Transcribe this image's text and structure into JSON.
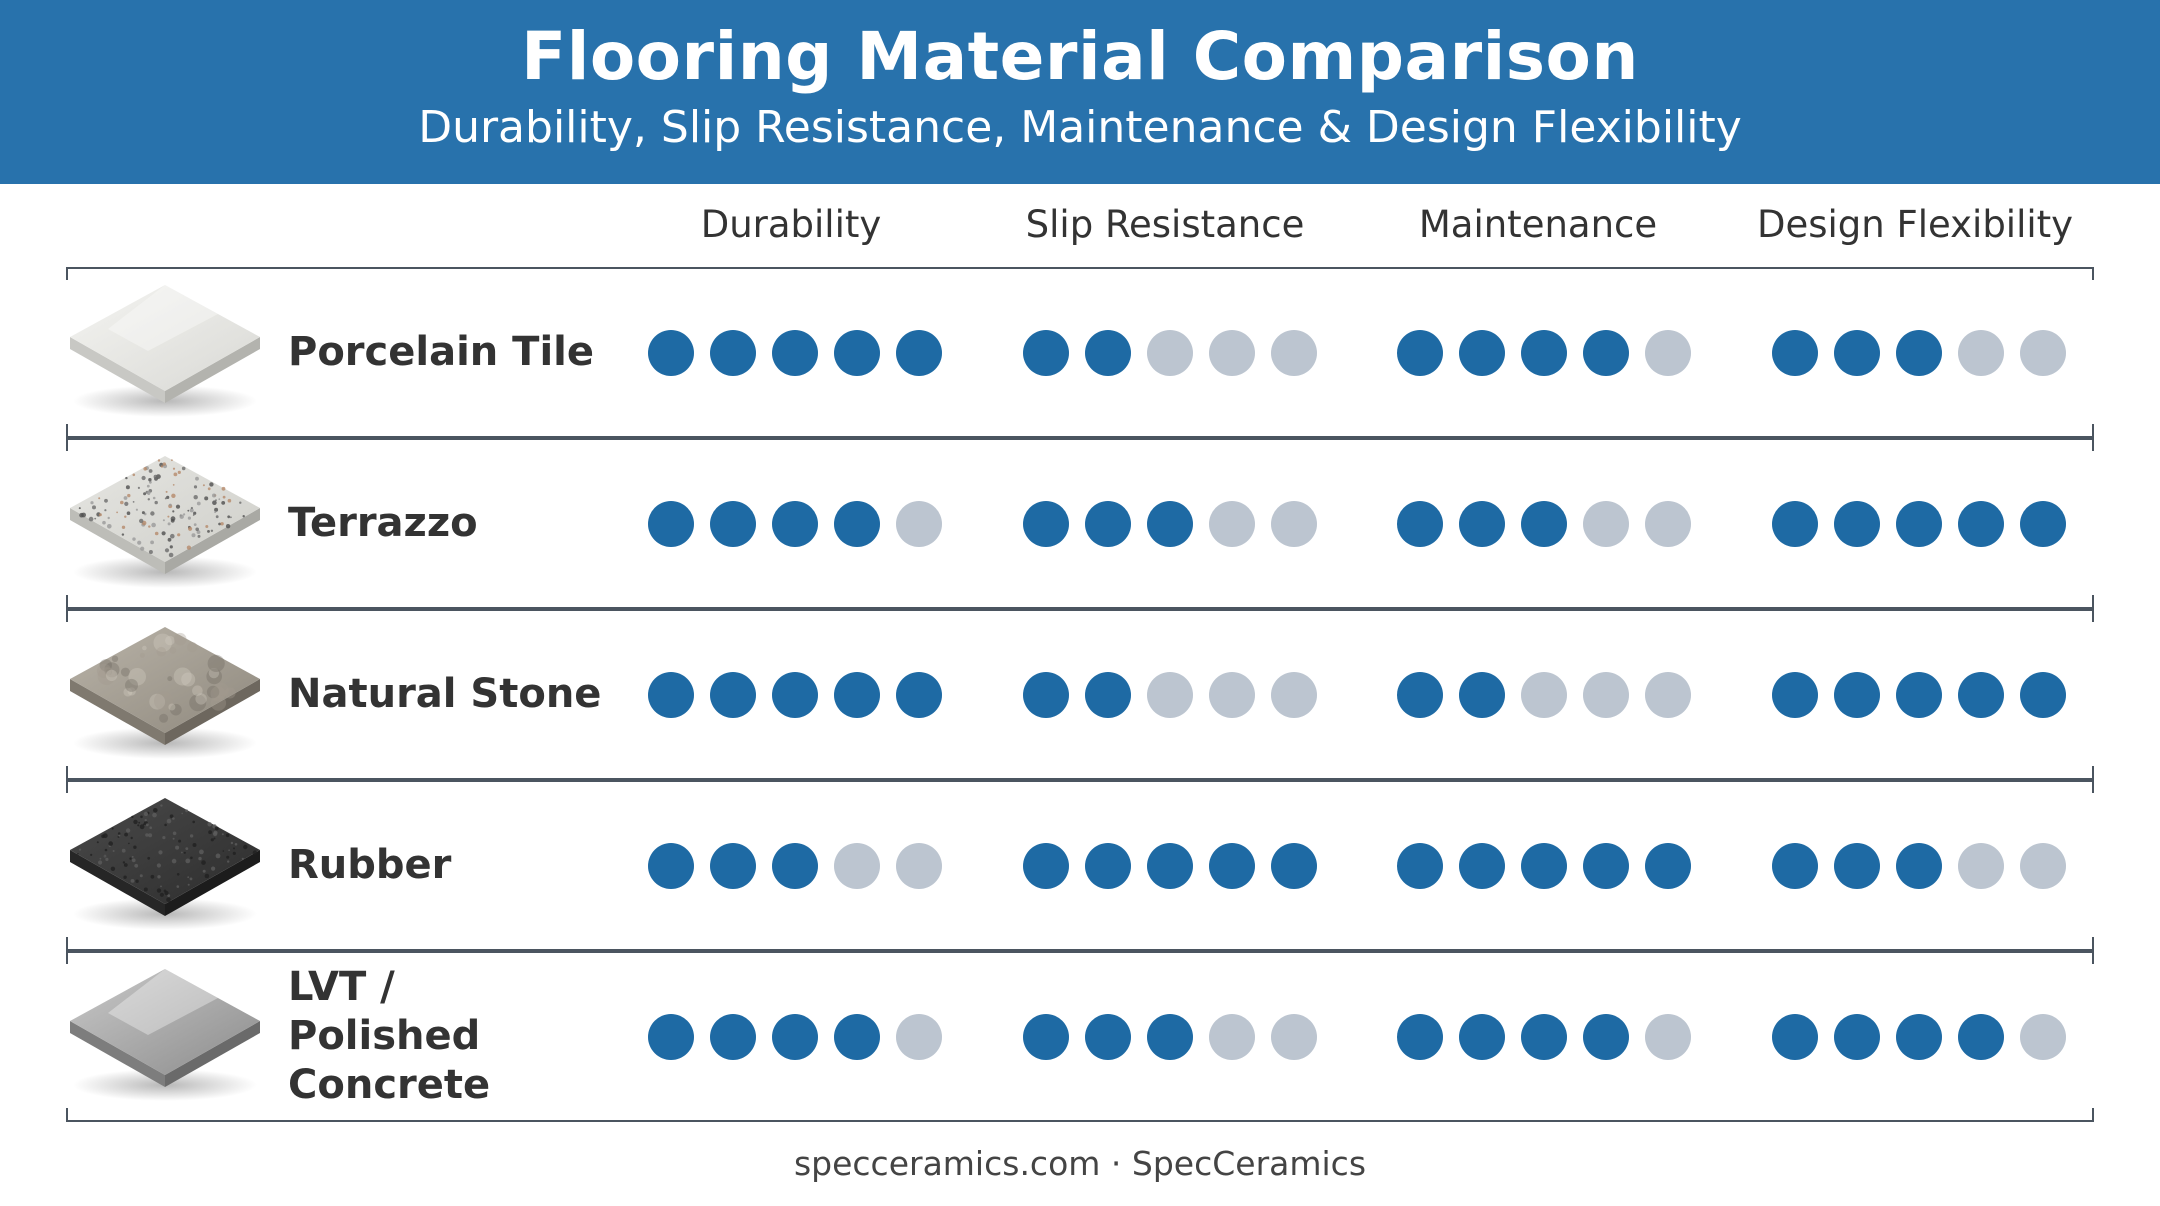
{
  "header": {
    "title": "Flooring Material Comparison",
    "subtitle": "Durability, Slip Resistance, Maintenance & Design Flexibility"
  },
  "colors": {
    "header_bg": "#2872ac",
    "dot_filled": "#1e6aa4",
    "dot_empty": "#bcc5d0",
    "divider": "#4b5560"
  },
  "chart_data": {
    "type": "table",
    "title": "Flooring Material Comparison",
    "subtitle": "Durability, Slip Resistance, Maintenance & Design Flexibility",
    "scale_max": 5,
    "columns": [
      "Durability",
      "Slip Resistance",
      "Maintenance",
      "Design Flexibility"
    ],
    "rows": [
      {
        "name": "Porcelain Tile",
        "swatch": "porcelain-swatch",
        "ratings": [
          5,
          2,
          4,
          3
        ]
      },
      {
        "name": "Terrazzo",
        "swatch": "terrazzo-swatch",
        "ratings": [
          4,
          3,
          3,
          5
        ]
      },
      {
        "name": "Natural Stone",
        "swatch": "natural-stone-swatch",
        "ratings": [
          5,
          2,
          2,
          5
        ]
      },
      {
        "name": "Rubber",
        "swatch": "rubber-swatch",
        "ratings": [
          3,
          5,
          5,
          3
        ]
      },
      {
        "name": "LVT / Polished Concrete",
        "swatch": "polished-concrete-swatch",
        "ratings": [
          4,
          3,
          4,
          4
        ]
      }
    ]
  },
  "footer": {
    "text": "specceramics.com · SpecCeramics"
  }
}
